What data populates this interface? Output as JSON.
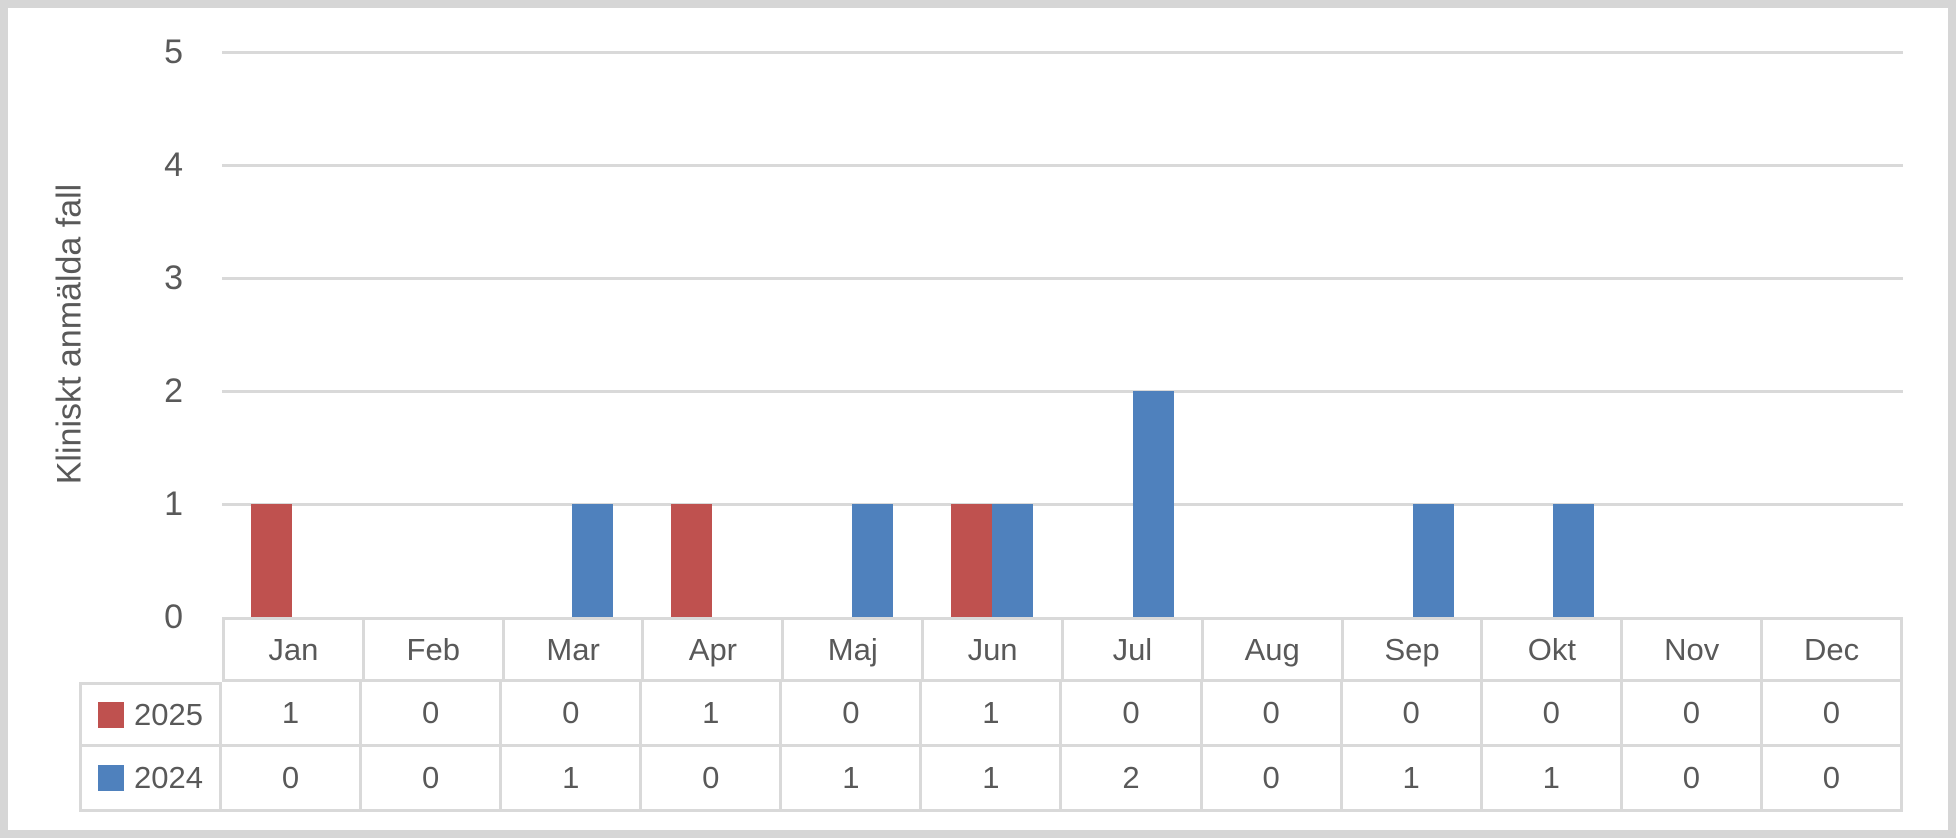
{
  "chart_data": {
    "type": "bar",
    "title": "",
    "ylabel": "Kliniskt anmälda fall",
    "xlabel": "",
    "ylim": [
      0,
      5
    ],
    "yticks": [
      "0",
      "1",
      "2",
      "3",
      "4",
      "5"
    ],
    "grid": true,
    "legend_position": "data-table-left-column",
    "categories": [
      "Jan",
      "Feb",
      "Mar",
      "Apr",
      "Maj",
      "Jun",
      "Jul",
      "Aug",
      "Sep",
      "Okt",
      "Nov",
      "Dec"
    ],
    "series": [
      {
        "name": "2025",
        "color": "#BF514F",
        "values": [
          1,
          0,
          0,
          1,
          0,
          1,
          0,
          0,
          0,
          0,
          0,
          0
        ]
      },
      {
        "name": "2024",
        "color": "#4F81BD",
        "values": [
          0,
          0,
          1,
          0,
          1,
          1,
          2,
          0,
          1,
          1,
          0,
          0
        ]
      }
    ]
  },
  "colors": {
    "text": "#595959",
    "gridline": "#D9D9D9",
    "table_border": "#D9D9D9",
    "frame_border": "#D6D6D6",
    "background": "#FFFFFF"
  }
}
